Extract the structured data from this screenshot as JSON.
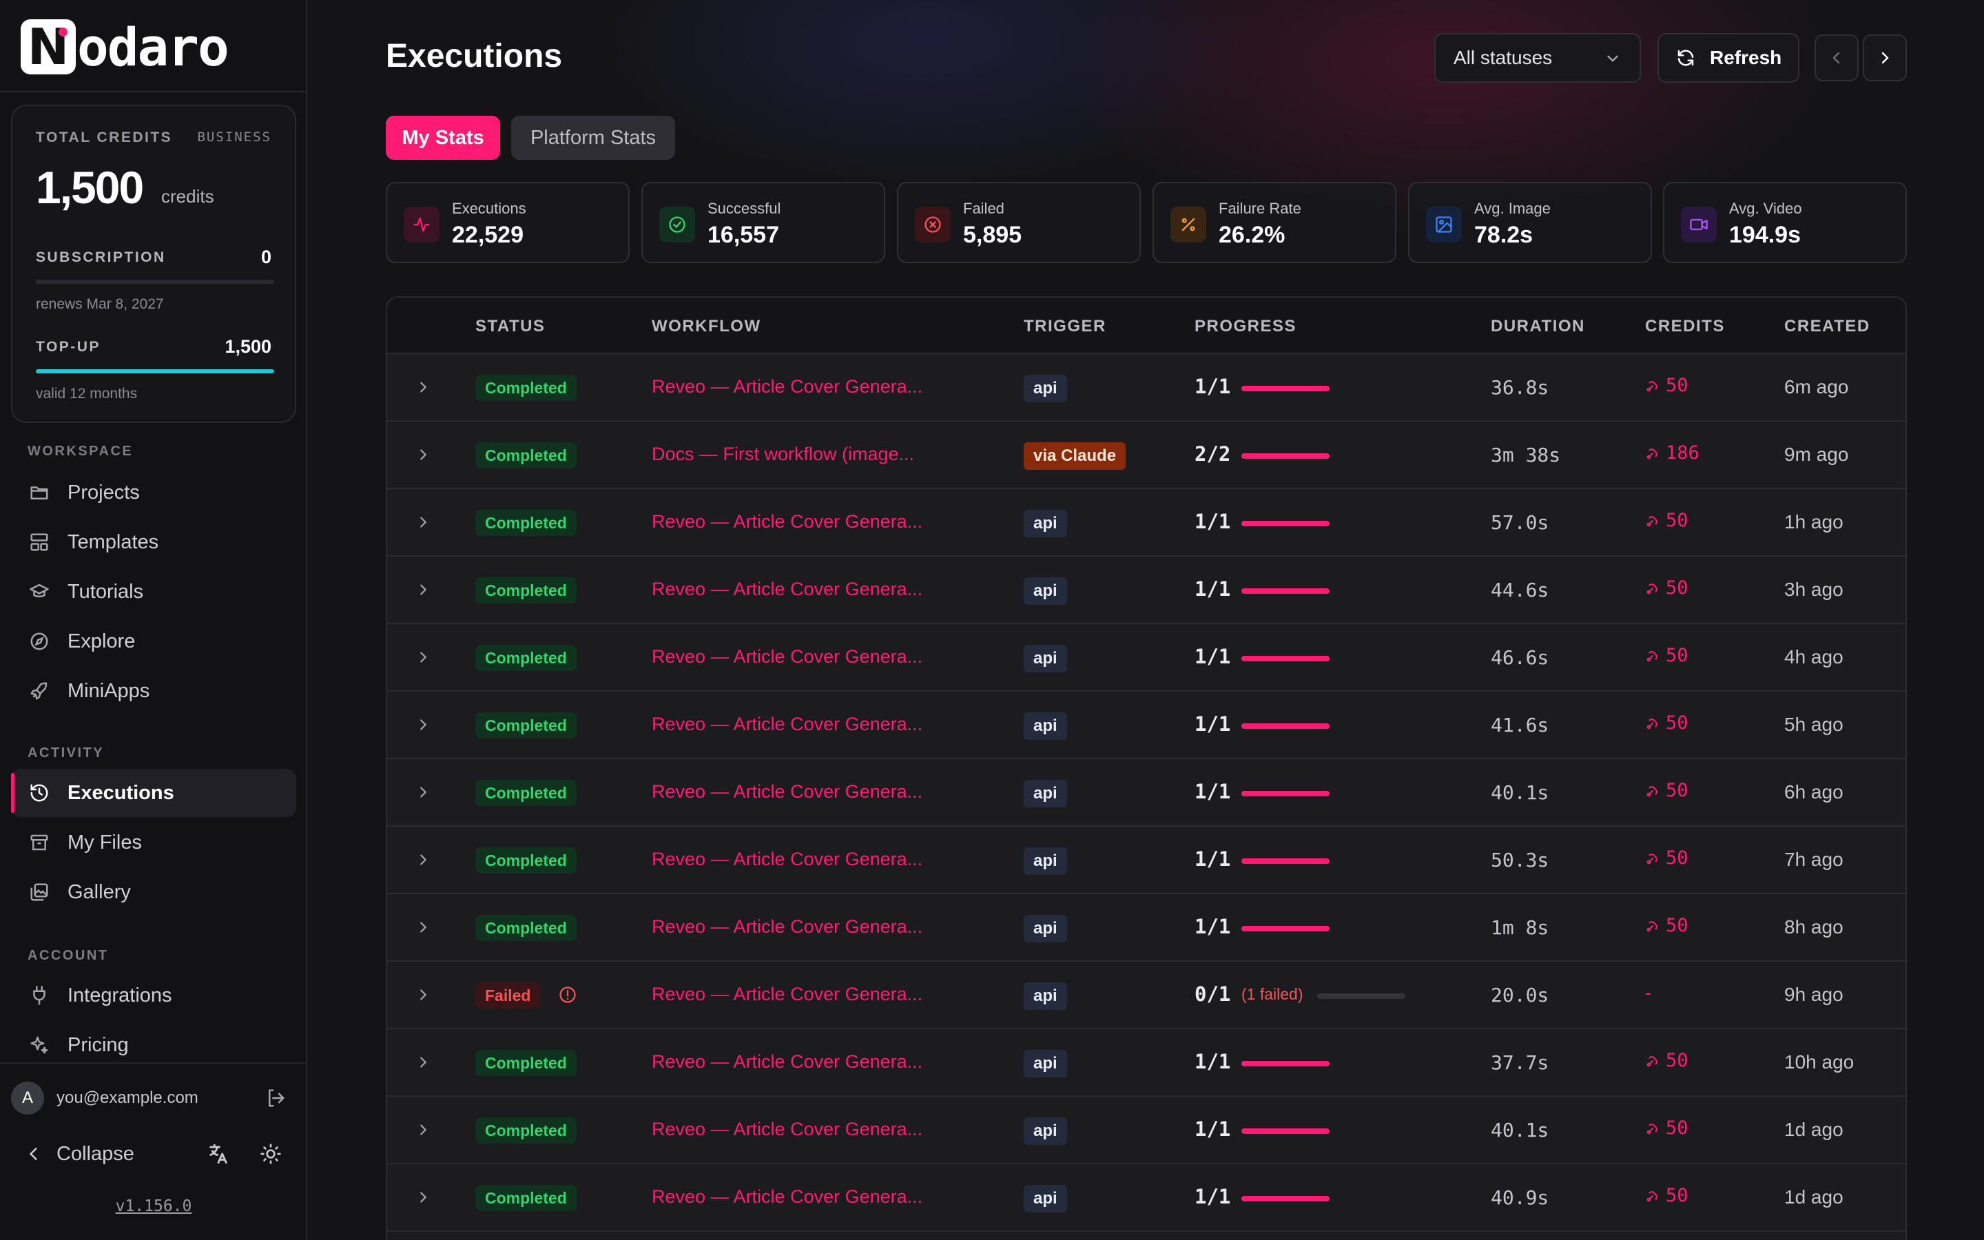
{
  "brand": {
    "name": "odaro",
    "logo_letter": "N"
  },
  "credits_card": {
    "label": "TOTAL CREDITS",
    "tier": "BUSINESS",
    "amount": "1,500",
    "unit": "credits",
    "subscription_label": "SUBSCRIPTION",
    "subscription_value": "0",
    "subscription_fill": 0,
    "renews": "renews Mar 8, 2027",
    "topup_label": "TOP-UP",
    "topup_value": "1,500",
    "topup_fill": 1.0,
    "valid": "valid 12 months"
  },
  "sidebar": {
    "workspace_label": "WORKSPACE",
    "workspace_items": [
      {
        "label": "Projects",
        "icon": "folder-icon"
      },
      {
        "label": "Templates",
        "icon": "layout-icon"
      },
      {
        "label": "Tutorials",
        "icon": "graduation-cap-icon"
      },
      {
        "label": "Explore",
        "icon": "compass-icon"
      },
      {
        "label": "MiniApps",
        "icon": "rocket-icon"
      }
    ],
    "activity_label": "ACTIVITY",
    "activity_items": [
      {
        "label": "Executions",
        "icon": "history-icon",
        "active": true
      },
      {
        "label": "My Files",
        "icon": "archive-icon"
      },
      {
        "label": "Gallery",
        "icon": "images-icon"
      }
    ],
    "account_label": "ACCOUNT",
    "account_items": [
      {
        "label": "Integrations",
        "icon": "plug-icon"
      },
      {
        "label": "Pricing",
        "icon": "sparkles-icon"
      }
    ],
    "user": {
      "avatar_letter": "A",
      "email": "you@example.com"
    },
    "collapse_label": "Collapse",
    "version": "v1.156.0"
  },
  "header": {
    "title": "Executions",
    "status_filter": "All statuses",
    "refresh_label": "Refresh"
  },
  "tabs": [
    {
      "label": "My Stats",
      "active": true
    },
    {
      "label": "Platform Stats",
      "active": false
    }
  ],
  "stats": [
    {
      "label": "Executions",
      "value": "22,529",
      "icon": "activity-icon",
      "color": "#ff1a74"
    },
    {
      "label": "Successful",
      "value": "16,557",
      "icon": "check-circle-icon",
      "color": "#34d46f"
    },
    {
      "label": "Failed",
      "value": "5,895",
      "icon": "x-circle-icon",
      "color": "#f4535a"
    },
    {
      "label": "Failure Rate",
      "value": "26.2%",
      "icon": "percent-icon",
      "color": "#f59e2a"
    },
    {
      "label": "Avg. Image",
      "value": "78.2s",
      "icon": "image-icon",
      "color": "#3b82f6"
    },
    {
      "label": "Avg. Video",
      "value": "194.9s",
      "icon": "video-icon",
      "color": "#a855f7"
    }
  ],
  "table": {
    "columns": [
      "STATUS",
      "WORKFLOW",
      "TRIGGER",
      "PROGRESS",
      "DURATION",
      "CREDITS",
      "CREATED"
    ],
    "rows": [
      {
        "status": "Completed",
        "workflow": "Reveo — Article Cover Genera...",
        "trigger": "api",
        "progress": "1/1",
        "duration": "36.8s",
        "credits": "50",
        "created": "6m ago"
      },
      {
        "status": "Completed",
        "workflow": "Docs — First workflow (image...",
        "trigger": "via Claude",
        "progress": "2/2",
        "duration": "3m 38s",
        "credits": "186",
        "created": "9m ago"
      },
      {
        "status": "Completed",
        "workflow": "Reveo — Article Cover Genera...",
        "trigger": "api",
        "progress": "1/1",
        "duration": "57.0s",
        "credits": "50",
        "created": "1h ago"
      },
      {
        "status": "Completed",
        "workflow": "Reveo — Article Cover Genera...",
        "trigger": "api",
        "progress": "1/1",
        "duration": "44.6s",
        "credits": "50",
        "created": "3h ago"
      },
      {
        "status": "Completed",
        "workflow": "Reveo — Article Cover Genera...",
        "trigger": "api",
        "progress": "1/1",
        "duration": "46.6s",
        "credits": "50",
        "created": "4h ago"
      },
      {
        "status": "Completed",
        "workflow": "Reveo — Article Cover Genera...",
        "trigger": "api",
        "progress": "1/1",
        "duration": "41.6s",
        "credits": "50",
        "created": "5h ago"
      },
      {
        "status": "Completed",
        "workflow": "Reveo — Article Cover Genera...",
        "trigger": "api",
        "progress": "1/1",
        "duration": "40.1s",
        "credits": "50",
        "created": "6h ago"
      },
      {
        "status": "Completed",
        "workflow": "Reveo — Article Cover Genera...",
        "trigger": "api",
        "progress": "1/1",
        "duration": "50.3s",
        "credits": "50",
        "created": "7h ago"
      },
      {
        "status": "Completed",
        "workflow": "Reveo — Article Cover Genera...",
        "trigger": "api",
        "progress": "1/1",
        "duration": "1m 8s",
        "credits": "50",
        "created": "8h ago"
      },
      {
        "status": "Failed",
        "workflow": "Reveo — Article Cover Genera...",
        "trigger": "api",
        "progress": "0/1",
        "progress_note": "(1 failed)",
        "duration": "20.0s",
        "credits": "-",
        "created": "9h ago"
      },
      {
        "status": "Completed",
        "workflow": "Reveo — Article Cover Genera...",
        "trigger": "api",
        "progress": "1/1",
        "duration": "37.7s",
        "credits": "50",
        "created": "10h ago"
      },
      {
        "status": "Completed",
        "workflow": "Reveo — Article Cover Genera...",
        "trigger": "api",
        "progress": "1/1",
        "duration": "40.1s",
        "credits": "50",
        "created": "1d ago"
      },
      {
        "status": "Completed",
        "workflow": "Reveo — Article Cover Genera...",
        "trigger": "api",
        "progress": "1/1",
        "duration": "40.9s",
        "credits": "50",
        "created": "1d ago"
      }
    ]
  }
}
